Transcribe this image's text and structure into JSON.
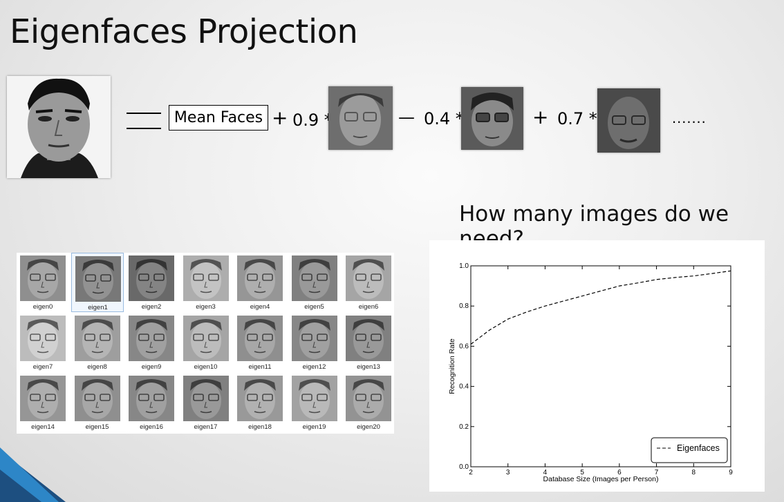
{
  "slide": {
    "title": "Eigenfaces Projection",
    "mean_label": "Mean Faces",
    "terms": [
      {
        "op": "+",
        "coef": "0.9 *"
      },
      {
        "op": "—",
        "coef": "0.4 *"
      },
      {
        "op": "+",
        "coef": "0.7 *"
      }
    ],
    "ellipsis": ".......",
    "question": "How many images do we need?"
  },
  "eigen_labels": [
    "eigen0",
    "eigen1",
    "eigen2",
    "eigen3",
    "eigen4",
    "eigen5",
    "eigen6",
    "eigen7",
    "eigen8",
    "eigen9",
    "eigen10",
    "eigen11",
    "eigen12",
    "eigen13",
    "eigen14",
    "eigen15",
    "eigen16",
    "eigen17",
    "eigen18",
    "eigen19",
    "eigen20"
  ],
  "chart_data": {
    "type": "line",
    "title": "",
    "xlabel": "Database Size (Images per Person)",
    "ylabel": "Recognition Rate",
    "x": [
      2,
      2.5,
      3,
      3.5,
      4,
      4.5,
      5,
      5.5,
      6,
      6.5,
      7,
      7.5,
      8,
      8.5,
      9
    ],
    "series": [
      {
        "name": "Eigenfaces",
        "style": "dashed",
        "color": "#000000",
        "values": [
          0.61,
          0.68,
          0.735,
          0.77,
          0.8,
          0.825,
          0.85,
          0.875,
          0.9,
          0.915,
          0.932,
          0.942,
          0.95,
          0.962,
          0.975
        ]
      }
    ],
    "xlim": [
      2,
      9
    ],
    "ylim": [
      0.0,
      1.0
    ],
    "xticks": [
      2,
      3,
      4,
      5,
      6,
      7,
      8,
      9
    ],
    "yticks": [
      "0.0",
      "0.2",
      "0.4",
      "0.6",
      "0.8",
      "1.0"
    ],
    "legend_position": "lower-right",
    "grid": false
  }
}
